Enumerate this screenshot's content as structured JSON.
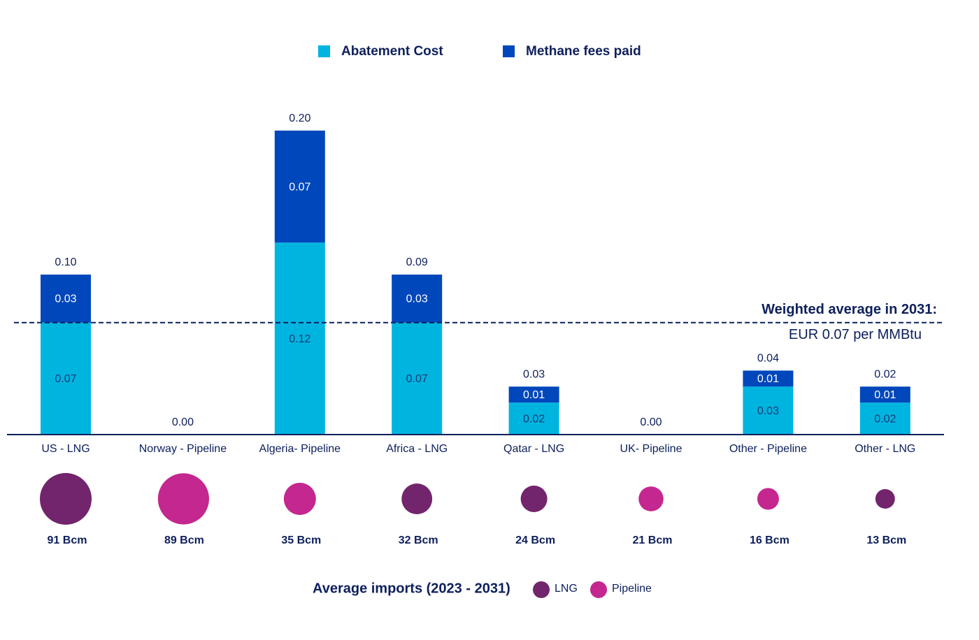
{
  "chart_data": {
    "type": "stacked_bar",
    "categories": [
      "US - LNG",
      "Norway - Pipeline",
      "Algeria- Pipeline",
      "Africa - LNG",
      "Qatar - LNG",
      "UK- Pipeline",
      "Other - Pipeline",
      "Other - LNG"
    ],
    "series": [
      {
        "name": "Abatement Cost",
        "color": "#00b4e0",
        "values": [
          0.07,
          0,
          0.12,
          0.07,
          0.02,
          0,
          0.03,
          0.02
        ]
      },
      {
        "name": "Methane fees paid",
        "color": "#0047bb",
        "values": [
          0.03,
          0,
          0.07,
          0.03,
          0.01,
          0,
          0.01,
          0.01
        ]
      }
    ],
    "totals": [
      0.1,
      0,
      0.2,
      0.09,
      0.03,
      0,
      0.04,
      0.02
    ],
    "total_labels": [
      "0.10",
      "0.00",
      "0.20",
      "0.09",
      "0.03",
      "0.00",
      "0.04",
      "0.02"
    ],
    "reference_line": {
      "value": 0.07,
      "label": [
        "Weighted average in 2031:",
        "EUR 0.07 per MMBtu"
      ]
    },
    "bubbles": {
      "title": "Average imports (2023 - 2031)",
      "values": [
        91,
        89,
        35,
        32,
        24,
        21,
        16,
        13
      ],
      "value_labels": [
        "91 Bcm",
        "89 Bcm",
        "35 Bcm",
        "32 Bcm",
        "24 Bcm",
        "21 Bcm",
        "16 Bcm",
        "13 Bcm"
      ],
      "colors": [
        "#72246c",
        "#c4278f",
        "#c4278f",
        "#72246c",
        "#72246c",
        "#c4278f",
        "#c4278f",
        "#72246c"
      ],
      "legend": [
        {
          "name": "LNG",
          "color": "#72246c"
        },
        {
          "name": "Pipeline",
          "color": "#c4278f"
        }
      ]
    }
  }
}
